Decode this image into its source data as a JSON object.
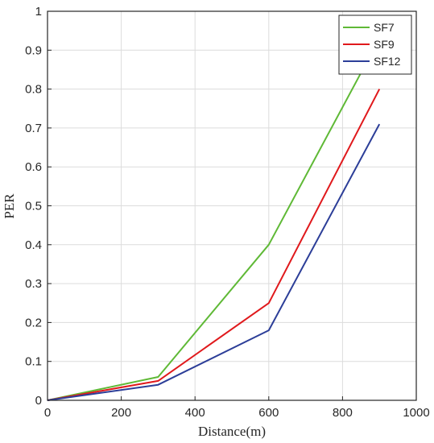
{
  "chart_data": {
    "type": "line",
    "xlabel": "Distance(m)",
    "ylabel": "PER",
    "xlim": [
      0,
      1000
    ],
    "ylim": [
      0,
      1
    ],
    "xticks": [
      0,
      200,
      400,
      600,
      800,
      1000
    ],
    "yticks": [
      0,
      0.1,
      0.2,
      0.3,
      0.4,
      0.5,
      0.6,
      0.7,
      0.8,
      0.9,
      1
    ],
    "xtick_labels": [
      "0",
      "200",
      "400",
      "600",
      "800",
      "1000"
    ],
    "ytick_labels": [
      "0",
      "0.1",
      "0.2",
      "0.3",
      "0.4",
      "0.5",
      "0.6",
      "0.7",
      "0.8",
      "0.9",
      "1"
    ],
    "grid": true,
    "legend_position": "top-right",
    "series": [
      {
        "name": "SF7",
        "color": "#5fb936",
        "x": [
          0,
          300,
          600,
          900
        ],
        "y": [
          0,
          0.06,
          0.4,
          0.93
        ]
      },
      {
        "name": "SF9",
        "color": "#e0191c",
        "x": [
          0,
          300,
          600,
          900
        ],
        "y": [
          0,
          0.05,
          0.25,
          0.8
        ]
      },
      {
        "name": "SF12",
        "color": "#2c3e98",
        "x": [
          0,
          300,
          600,
          900
        ],
        "y": [
          0,
          0.04,
          0.18,
          0.71
        ]
      }
    ]
  }
}
